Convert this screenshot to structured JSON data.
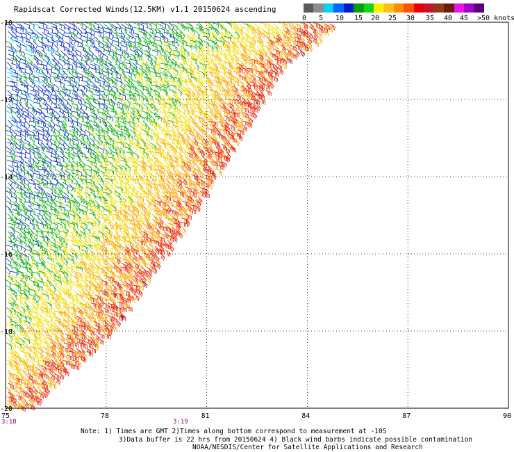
{
  "header": {
    "title": "Rapidscat Corrected Winds(12.5KM) v1.1 20150624 ascending"
  },
  "colorbar": {
    "colors": [
      "#595959",
      "#8c8c8c",
      "#00d2ff",
      "#0066ff",
      "#0018c8",
      "#00a000",
      "#12d612",
      "#ffea00",
      "#ffbe14",
      "#ff8c00",
      "#ff5000",
      "#e60000",
      "#c81428",
      "#8c3c14",
      "#6b1b0b",
      "#e614e6",
      "#a000c8",
      "#5a007a"
    ],
    "labels": [
      "0",
      "5",
      "10",
      "15",
      "20",
      "25",
      "30",
      "35",
      "40",
      "45",
      ">50 knots"
    ]
  },
  "chart_data": {
    "type": "wind_barbs",
    "title": "Rapidscat Corrected Winds(12.5KM) v1.1 20150624 ascending",
    "xlim": [
      75,
      90
    ],
    "ylim": [
      -20,
      -10
    ],
    "x_ticks": [
      "75",
      "78",
      "81",
      "84",
      "87",
      "90"
    ],
    "y_ticks": [
      "-10",
      "-12",
      "-14",
      "-16",
      "-18",
      "-20"
    ],
    "grid": true,
    "units": "knots",
    "swath_edge": [
      [
        84.8,
        -10
      ],
      [
        84.2,
        -10.5
      ],
      [
        83.3,
        -11
      ],
      [
        82.6,
        -12
      ],
      [
        81.9,
        -13
      ],
      [
        81.2,
        -14
      ],
      [
        80.5,
        -15
      ],
      [
        79.7,
        -16
      ],
      [
        78.9,
        -17
      ],
      [
        78.3,
        -17.8
      ],
      [
        77.5,
        -18.5
      ],
      [
        76.5,
        -19.3
      ],
      [
        75.7,
        -20
      ]
    ],
    "wind_bands": [
      {
        "offset_from_edge_deg": 0.0,
        "speed_knots": 32
      },
      {
        "offset_from_edge_deg": 1.0,
        "speed_knots": 29
      },
      {
        "offset_from_edge_deg": 2.0,
        "speed_knots": 24
      },
      {
        "offset_from_edge_deg": 3.0,
        "speed_knots": 21
      },
      {
        "offset_from_edge_deg": 4.0,
        "speed_knots": 18
      },
      {
        "offset_from_edge_deg": 5.5,
        "speed_knots": 15
      },
      {
        "offset_from_edge_deg": 7.0,
        "speed_knots": 13
      },
      {
        "offset_from_edge_deg": 9.0,
        "speed_knots": 12
      }
    ],
    "wind_direction_from_deg": 120,
    "time_labels": [
      {
        "text": "3:18",
        "lon": 75
      },
      {
        "text": "3:19",
        "lon": 80.2
      }
    ]
  },
  "notes": {
    "line1": "Note: 1) Times are GMT 2)Times along bottom correspond to measurement at -10S",
    "line2": "3)Data buffer is 22 hrs from 20150624 4) Black wind barbs indicate possible contamination",
    "line3": "NOAA/NESDIS/Center for Satellite Applications and Research"
  }
}
